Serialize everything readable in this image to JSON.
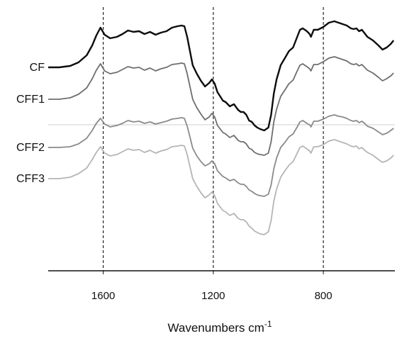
{
  "chart_data": {
    "type": "line",
    "title": "",
    "xlabel": "Wavenumbers",
    "xlabel_unit": "cm",
    "xlabel_exponent": "-1",
    "ylabel": "",
    "xlim": [
      1800,
      540
    ],
    "x_reversed": true,
    "x_ticks": [
      1600,
      1200,
      800
    ],
    "vlines": [
      1600,
      1200,
      800
    ],
    "grid": false,
    "legend": "labels at left of each trace",
    "series": [
      {
        "name": "CF",
        "color": "#0d0d0d",
        "x": [
          1800,
          1760,
          1720,
          1690,
          1660,
          1640,
          1625,
          1610,
          1595,
          1575,
          1550,
          1530,
          1510,
          1490,
          1470,
          1450,
          1430,
          1410,
          1390,
          1370,
          1350,
          1330,
          1315,
          1305,
          1295,
          1285,
          1275,
          1260,
          1245,
          1230,
          1215,
          1205,
          1195,
          1185,
          1175,
          1165,
          1155,
          1140,
          1125,
          1110,
          1100,
          1090,
          1080,
          1070,
          1060,
          1050,
          1040,
          1030,
          1015,
          1000,
          990,
          980,
          970,
          955,
          940,
          925,
          910,
          895,
          885,
          875,
          860,
          850,
          845,
          835,
          820,
          800,
          780,
          760,
          745,
          730,
          715,
          700,
          690,
          680,
          670,
          660,
          650,
          640,
          620,
          600,
          585,
          570,
          555,
          545
        ],
        "y": [
          83,
          83,
          81,
          76,
          66,
          52,
          38,
          27,
          37,
          42,
          40,
          36,
          31,
          33,
          32,
          36,
          33,
          37,
          34,
          32,
          27,
          25,
          24,
          25,
          40,
          60,
          80,
          92,
          102,
          110,
          105,
          100,
          106,
          118,
          124,
          130,
          132,
          138,
          135,
          143,
          146,
          146,
          150,
          158,
          160,
          165,
          168,
          170,
          172,
          168,
          150,
          120,
          100,
          80,
          70,
          60,
          55,
          40,
          30,
          28,
          32,
          36,
          40,
          30,
          30,
          26,
          20,
          18,
          20,
          22,
          24,
          28,
          29,
          28,
          32,
          30,
          35,
          40,
          45,
          52,
          58,
          55,
          50,
          45
        ]
      },
      {
        "name": "CFF1",
        "color": "#6e6e6e",
        "x": [
          1800,
          1760,
          1720,
          1690,
          1660,
          1640,
          1625,
          1610,
          1595,
          1575,
          1550,
          1530,
          1510,
          1490,
          1470,
          1450,
          1430,
          1410,
          1390,
          1370,
          1350,
          1330,
          1315,
          1305,
          1295,
          1285,
          1275,
          1260,
          1245,
          1230,
          1215,
          1205,
          1195,
          1185,
          1175,
          1165,
          1155,
          1140,
          1125,
          1110,
          1100,
          1090,
          1080,
          1070,
          1060,
          1050,
          1040,
          1030,
          1015,
          1000,
          990,
          980,
          970,
          955,
          940,
          925,
          910,
          895,
          885,
          875,
          860,
          850,
          845,
          835,
          820,
          800,
          780,
          760,
          745,
          730,
          715,
          700,
          690,
          680,
          670,
          660,
          650,
          640,
          620,
          600,
          585,
          570,
          555,
          545
        ],
        "y": [
          128,
          128,
          126,
          121,
          112,
          99,
          87,
          78,
          88,
          92,
          90,
          86,
          82,
          84,
          83,
          87,
          84,
          88,
          85,
          83,
          79,
          78,
          77,
          78,
          92,
          110,
          128,
          140,
          149,
          157,
          153,
          148,
          153,
          165,
          170,
          175,
          177,
          182,
          179,
          186,
          188,
          188,
          191,
          197,
          199,
          203,
          205,
          206,
          207,
          204,
          188,
          160,
          142,
          124,
          115,
          106,
          101,
          88,
          80,
          78,
          82,
          85,
          88,
          79,
          79,
          75,
          70,
          68,
          70,
          72,
          74,
          78,
          79,
          78,
          81,
          79,
          83,
          87,
          91,
          97,
          102,
          99,
          95,
          91
        ]
      },
      {
        "name": "CFF2",
        "color": "#8a8a8a",
        "x": [
          1800,
          1760,
          1720,
          1690,
          1660,
          1640,
          1625,
          1610,
          1595,
          1575,
          1550,
          1530,
          1510,
          1490,
          1470,
          1450,
          1430,
          1410,
          1390,
          1370,
          1350,
          1330,
          1315,
          1305,
          1295,
          1285,
          1275,
          1260,
          1245,
          1230,
          1215,
          1205,
          1195,
          1185,
          1175,
          1165,
          1155,
          1140,
          1125,
          1110,
          1100,
          1090,
          1080,
          1070,
          1060,
          1050,
          1040,
          1030,
          1015,
          1000,
          990,
          980,
          970,
          955,
          940,
          925,
          910,
          895,
          885,
          875,
          860,
          850,
          845,
          835,
          820,
          800,
          780,
          760,
          745,
          730,
          715,
          700,
          690,
          680,
          670,
          660,
          650,
          640,
          620,
          600,
          585,
          570,
          555,
          545
        ],
        "y": [
          196,
          196,
          195,
          191,
          183,
          172,
          162,
          155,
          163,
          167,
          165,
          162,
          158,
          160,
          159,
          162,
          160,
          163,
          161,
          159,
          156,
          155,
          154,
          155,
          166,
          181,
          197,
          208,
          216,
          222,
          219,
          215,
          219,
          229,
          233,
          237,
          239,
          243,
          241,
          246,
          248,
          248,
          251,
          256,
          258,
          261,
          263,
          264,
          265,
          262,
          249,
          226,
          211,
          196,
          189,
          181,
          177,
          167,
          160,
          158,
          162,
          164,
          167,
          159,
          159,
          156,
          152,
          150,
          152,
          153,
          155,
          158,
          159,
          158,
          161,
          159,
          162,
          166,
          169,
          174,
          178,
          176,
          172,
          169
        ]
      },
      {
        "name": "CFF3",
        "color": "#b5b5b5",
        "x": [
          1800,
          1760,
          1720,
          1690,
          1660,
          1640,
          1625,
          1610,
          1595,
          1575,
          1550,
          1530,
          1510,
          1490,
          1470,
          1450,
          1430,
          1410,
          1390,
          1370,
          1350,
          1330,
          1315,
          1305,
          1295,
          1285,
          1275,
          1260,
          1245,
          1230,
          1215,
          1205,
          1195,
          1185,
          1175,
          1165,
          1155,
          1140,
          1125,
          1110,
          1100,
          1090,
          1080,
          1070,
          1060,
          1050,
          1040,
          1030,
          1015,
          1000,
          990,
          980,
          970,
          955,
          940,
          925,
          910,
          895,
          885,
          875,
          860,
          850,
          845,
          835,
          820,
          800,
          780,
          760,
          745,
          730,
          715,
          700,
          690,
          680,
          670,
          660,
          650,
          640,
          620,
          600,
          585,
          570,
          555,
          545
        ],
        "y": [
          240,
          240,
          238,
          233,
          225,
          213,
          203,
          195,
          204,
          208,
          206,
          202,
          198,
          200,
          199,
          203,
          200,
          204,
          201,
          199,
          195,
          194,
          193,
          194,
          206,
          223,
          240,
          251,
          260,
          267,
          263,
          259,
          264,
          275,
          280,
          285,
          287,
          292,
          289,
          296,
          298,
          298,
          301,
          307,
          310,
          314,
          316,
          318,
          319,
          315,
          299,
          272,
          255,
          238,
          229,
          221,
          216,
          204,
          196,
          194,
          198,
          201,
          204,
          195,
          195,
          192,
          187,
          185,
          187,
          189,
          191,
          194,
          195,
          194,
          198,
          196,
          200,
          203,
          207,
          213,
          217,
          215,
          211,
          207
        ]
      }
    ]
  }
}
